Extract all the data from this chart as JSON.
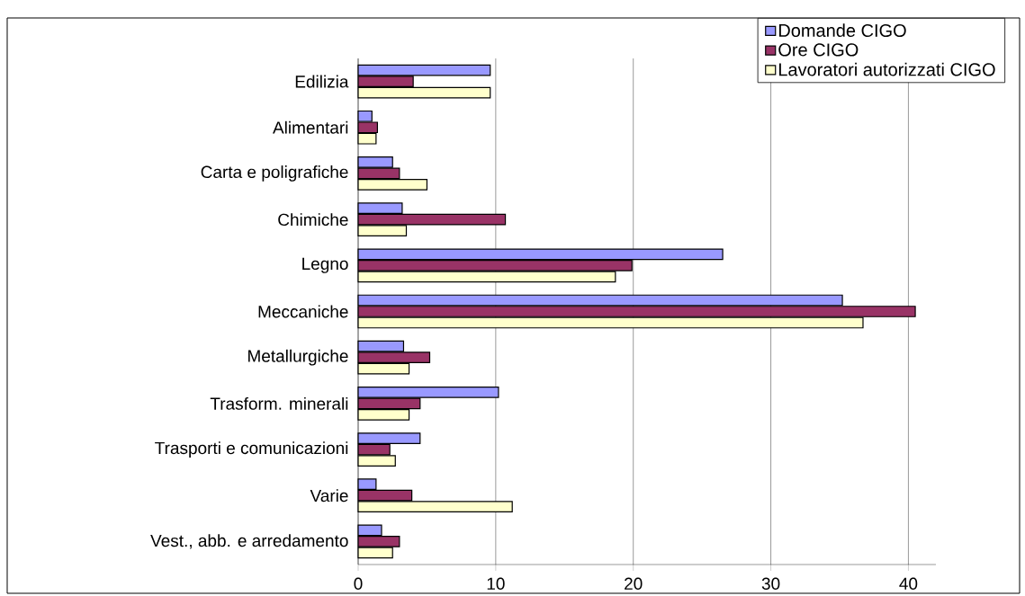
{
  "chart_data": {
    "type": "bar",
    "orientation": "horizontal",
    "categories": [
      "Edilizia",
      "Alimentari",
      "Carta e poligrafiche",
      "Chimiche",
      "Legno",
      "Meccaniche",
      "Metallurgiche",
      "Trasform. minerali",
      "Trasporti e comunicazioni",
      "Varie",
      "Vest., abb. e arredamento"
    ],
    "series": [
      {
        "name": "Domande CIGO",
        "color": "#9999ff",
        "values": [
          9.6,
          1.0,
          2.5,
          3.2,
          26.5,
          35.2,
          3.3,
          10.2,
          4.5,
          1.3,
          1.7
        ]
      },
      {
        "name": "Ore CIGO",
        "color": "#993366",
        "values": [
          4.0,
          1.4,
          3.0,
          10.7,
          19.9,
          40.5,
          5.2,
          4.5,
          2.3,
          3.9,
          3.0
        ]
      },
      {
        "name": "Lavoratori autorizzati CIGO",
        "color": "#ffffcc",
        "values": [
          9.6,
          1.3,
          5.0,
          3.5,
          18.7,
          36.7,
          3.7,
          3.7,
          2.7,
          11.2,
          2.5
        ]
      }
    ],
    "xlim": [
      0,
      42
    ],
    "xticks": [
      0,
      10,
      20,
      30,
      40
    ],
    "grid": "x",
    "legend": "top right"
  }
}
